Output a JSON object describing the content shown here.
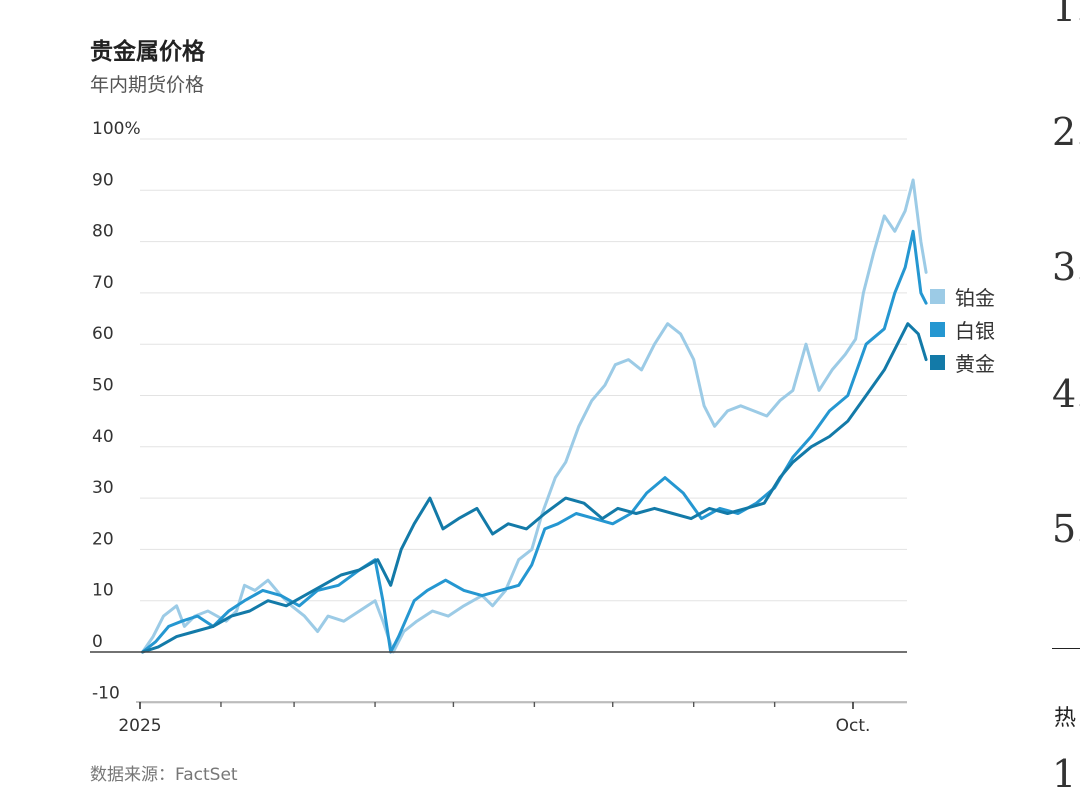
{
  "title": "贵金属价格",
  "subtitle": "年内期货价格",
  "source": "数据来源：FactSet",
  "side": {
    "numbers": [
      "1.",
      "2.",
      "3.",
      "4.",
      "5."
    ],
    "rule_char": "热",
    "bottom_num": "1"
  },
  "chart_data": {
    "type": "line",
    "title": "贵金属价格",
    "subtitle": "年内期货价格",
    "ylabel": "",
    "ylim": [
      -10,
      100
    ],
    "y_ticks": [
      -10,
      0,
      10,
      20,
      30,
      40,
      50,
      60,
      70,
      80,
      90,
      100
    ],
    "y_tick_labels": [
      "-10",
      "0",
      "10",
      "20",
      "30",
      "40",
      "50",
      "60",
      "70",
      "80",
      "90",
      "100%"
    ],
    "x_axis": {
      "start": "2025-01-01",
      "end": "2025-10-31"
    },
    "x_labels": [
      {
        "x": "2025-01-01",
        "label": "2025"
      },
      {
        "x": "2025-10-01",
        "label": "Oct."
      }
    ],
    "x_minor_ticks": [
      "2025-02-01",
      "2025-03-01",
      "2025-04-01",
      "2025-05-01",
      "2025-06-01",
      "2025-07-01",
      "2025-08-01",
      "2025-09-01"
    ],
    "grid": true,
    "legend_position": "right",
    "series": [
      {
        "name": "铂金",
        "color": "#9ccbe6",
        "points": [
          [
            "2025-01-02",
            0
          ],
          [
            "2025-01-06",
            3
          ],
          [
            "2025-01-10",
            7
          ],
          [
            "2025-01-15",
            9
          ],
          [
            "2025-01-18",
            5
          ],
          [
            "2025-01-22",
            7
          ],
          [
            "2025-01-27",
            8
          ],
          [
            "2025-02-03",
            6
          ],
          [
            "2025-02-07",
            8
          ],
          [
            "2025-02-10",
            13
          ],
          [
            "2025-02-14",
            12
          ],
          [
            "2025-02-19",
            14
          ],
          [
            "2025-02-24",
            11
          ],
          [
            "2025-02-28",
            9
          ],
          [
            "2025-03-05",
            7
          ],
          [
            "2025-03-10",
            4
          ],
          [
            "2025-03-14",
            7
          ],
          [
            "2025-03-20",
            6
          ],
          [
            "2025-03-26",
            8
          ],
          [
            "2025-04-01",
            10
          ],
          [
            "2025-04-04",
            6
          ],
          [
            "2025-04-08",
            0
          ],
          [
            "2025-04-12",
            4
          ],
          [
            "2025-04-17",
            6
          ],
          [
            "2025-04-23",
            8
          ],
          [
            "2025-04-29",
            7
          ],
          [
            "2025-05-05",
            9
          ],
          [
            "2025-05-12",
            11
          ],
          [
            "2025-05-16",
            9
          ],
          [
            "2025-05-21",
            12
          ],
          [
            "2025-05-26",
            18
          ],
          [
            "2025-05-31",
            20
          ],
          [
            "2025-06-04",
            27
          ],
          [
            "2025-06-09",
            34
          ],
          [
            "2025-06-13",
            37
          ],
          [
            "2025-06-18",
            44
          ],
          [
            "2025-06-23",
            49
          ],
          [
            "2025-06-28",
            52
          ],
          [
            "2025-07-02",
            56
          ],
          [
            "2025-07-07",
            57
          ],
          [
            "2025-07-12",
            55
          ],
          [
            "2025-07-17",
            60
          ],
          [
            "2025-07-22",
            64
          ],
          [
            "2025-07-27",
            62
          ],
          [
            "2025-08-01",
            57
          ],
          [
            "2025-08-05",
            48
          ],
          [
            "2025-08-09",
            44
          ],
          [
            "2025-08-14",
            47
          ],
          [
            "2025-08-19",
            48
          ],
          [
            "2025-08-24",
            47
          ],
          [
            "2025-08-29",
            46
          ],
          [
            "2025-09-03",
            49
          ],
          [
            "2025-09-08",
            51
          ],
          [
            "2025-09-13",
            60
          ],
          [
            "2025-09-18",
            51
          ],
          [
            "2025-09-23",
            55
          ],
          [
            "2025-09-28",
            58
          ],
          [
            "2025-10-02",
            61
          ],
          [
            "2025-10-05",
            70
          ],
          [
            "2025-10-09",
            78
          ],
          [
            "2025-10-13",
            85
          ],
          [
            "2025-10-17",
            82
          ],
          [
            "2025-10-21",
            86
          ],
          [
            "2025-10-24",
            92
          ],
          [
            "2025-10-27",
            80
          ],
          [
            "2025-10-29",
            74
          ]
        ]
      },
      {
        "name": "白银",
        "color": "#2597d1",
        "points": [
          [
            "2025-01-02",
            0
          ],
          [
            "2025-01-07",
            2
          ],
          [
            "2025-01-12",
            5
          ],
          [
            "2025-01-17",
            6
          ],
          [
            "2025-01-23",
            7
          ],
          [
            "2025-01-29",
            5
          ],
          [
            "2025-02-04",
            8
          ],
          [
            "2025-02-10",
            10
          ],
          [
            "2025-02-17",
            12
          ],
          [
            "2025-02-24",
            11
          ],
          [
            "2025-03-03",
            9
          ],
          [
            "2025-03-10",
            12
          ],
          [
            "2025-03-18",
            13
          ],
          [
            "2025-03-26",
            16
          ],
          [
            "2025-04-01",
            18
          ],
          [
            "2025-04-04",
            10
          ],
          [
            "2025-04-07",
            0
          ],
          [
            "2025-04-10",
            3
          ],
          [
            "2025-04-16",
            10
          ],
          [
            "2025-04-21",
            12
          ],
          [
            "2025-04-28",
            14
          ],
          [
            "2025-05-05",
            12
          ],
          [
            "2025-05-12",
            11
          ],
          [
            "2025-05-19",
            12
          ],
          [
            "2025-05-26",
            13
          ],
          [
            "2025-05-31",
            17
          ],
          [
            "2025-06-05",
            24
          ],
          [
            "2025-06-10",
            25
          ],
          [
            "2025-06-17",
            27
          ],
          [
            "2025-06-24",
            26
          ],
          [
            "2025-07-01",
            25
          ],
          [
            "2025-07-08",
            27
          ],
          [
            "2025-07-14",
            31
          ],
          [
            "2025-07-21",
            34
          ],
          [
            "2025-07-28",
            31
          ],
          [
            "2025-08-04",
            26
          ],
          [
            "2025-08-11",
            28
          ],
          [
            "2025-08-18",
            27
          ],
          [
            "2025-08-25",
            29
          ],
          [
            "2025-09-01",
            32
          ],
          [
            "2025-09-08",
            38
          ],
          [
            "2025-09-15",
            42
          ],
          [
            "2025-09-22",
            47
          ],
          [
            "2025-09-29",
            50
          ],
          [
            "2025-10-06",
            60
          ],
          [
            "2025-10-13",
            63
          ],
          [
            "2025-10-17",
            70
          ],
          [
            "2025-10-21",
            75
          ],
          [
            "2025-10-24",
            82
          ],
          [
            "2025-10-27",
            70
          ],
          [
            "2025-10-29",
            68
          ]
        ]
      },
      {
        "name": "黄金",
        "color": "#137aa8",
        "points": [
          [
            "2025-01-02",
            0
          ],
          [
            "2025-01-08",
            1
          ],
          [
            "2025-01-15",
            3
          ],
          [
            "2025-01-22",
            4
          ],
          [
            "2025-01-29",
            5
          ],
          [
            "2025-02-05",
            7
          ],
          [
            "2025-02-12",
            8
          ],
          [
            "2025-02-19",
            10
          ],
          [
            "2025-02-26",
            9
          ],
          [
            "2025-03-05",
            11
          ],
          [
            "2025-03-12",
            13
          ],
          [
            "2025-03-19",
            15
          ],
          [
            "2025-03-26",
            16
          ],
          [
            "2025-04-02",
            18
          ],
          [
            "2025-04-07",
            13
          ],
          [
            "2025-04-11",
            20
          ],
          [
            "2025-04-16",
            25
          ],
          [
            "2025-04-22",
            30
          ],
          [
            "2025-04-27",
            24
          ],
          [
            "2025-05-03",
            26
          ],
          [
            "2025-05-10",
            28
          ],
          [
            "2025-05-16",
            23
          ],
          [
            "2025-05-22",
            25
          ],
          [
            "2025-05-29",
            24
          ],
          [
            "2025-06-05",
            27
          ],
          [
            "2025-06-13",
            30
          ],
          [
            "2025-06-20",
            29
          ],
          [
            "2025-06-27",
            26
          ],
          [
            "2025-07-03",
            28
          ],
          [
            "2025-07-10",
            27
          ],
          [
            "2025-07-17",
            28
          ],
          [
            "2025-07-24",
            27
          ],
          [
            "2025-07-31",
            26
          ],
          [
            "2025-08-07",
            28
          ],
          [
            "2025-08-14",
            27
          ],
          [
            "2025-08-21",
            28
          ],
          [
            "2025-08-28",
            29
          ],
          [
            "2025-09-03",
            34
          ],
          [
            "2025-09-08",
            37
          ],
          [
            "2025-09-15",
            40
          ],
          [
            "2025-09-22",
            42
          ],
          [
            "2025-09-29",
            45
          ],
          [
            "2025-10-06",
            50
          ],
          [
            "2025-10-13",
            55
          ],
          [
            "2025-10-18",
            60
          ],
          [
            "2025-10-22",
            64
          ],
          [
            "2025-10-26",
            62
          ],
          [
            "2025-10-29",
            57
          ]
        ]
      }
    ]
  }
}
